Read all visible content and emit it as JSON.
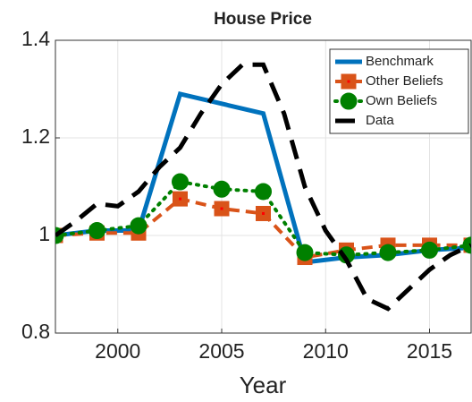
{
  "chart_data": {
    "type": "line",
    "title": "House Price",
    "xlabel": "Year",
    "xlim": [
      1997,
      2017
    ],
    "xticks": [
      2000,
      2005,
      2010,
      2015
    ],
    "ylim": [
      0.8,
      1.4
    ],
    "yticks": [
      0.8,
      1,
      1.2,
      1.4
    ],
    "grid": true,
    "legend": "upper right",
    "series": [
      {
        "name": "Benchmark",
        "color": "#0072bd",
        "style": "solid",
        "marker": "none",
        "x": [
          1997,
          1999,
          2001,
          2003,
          2005,
          2007,
          2009,
          2011,
          2013,
          2015,
          2017
        ],
        "values": [
          1.0,
          1.01,
          1.01,
          1.29,
          1.27,
          1.25,
          0.945,
          0.955,
          0.96,
          0.97,
          0.975
        ]
      },
      {
        "name": "Other Beliefs",
        "color": "#d95319",
        "style": "dashed",
        "marker": "square",
        "x": [
          1997,
          1999,
          2001,
          2003,
          2005,
          2007,
          2009,
          2011,
          2013,
          2015,
          2017
        ],
        "values": [
          1.0,
          1.005,
          1.005,
          1.075,
          1.055,
          1.045,
          0.955,
          0.97,
          0.98,
          0.98,
          0.98
        ]
      },
      {
        "name": "Own Beliefs",
        "color": "#008000",
        "style": "dotted",
        "marker": "circle",
        "x": [
          1997,
          1999,
          2001,
          2003,
          2005,
          2007,
          2009,
          2011,
          2013,
          2015,
          2017
        ],
        "values": [
          1.0,
          1.01,
          1.02,
          1.11,
          1.095,
          1.09,
          0.965,
          0.96,
          0.965,
          0.97,
          0.98
        ]
      },
      {
        "name": "Data",
        "color": "#000000",
        "style": "longdash",
        "marker": "none",
        "x": [
          1997,
          1998,
          1999,
          2000,
          2001,
          2002,
          2003,
          2004,
          2005,
          2006,
          2007,
          2008,
          2009,
          2010,
          2011,
          2012,
          2013,
          2014,
          2015,
          2016,
          2017
        ],
        "values": [
          1.0,
          1.03,
          1.065,
          1.06,
          1.09,
          1.14,
          1.18,
          1.25,
          1.31,
          1.35,
          1.35,
          1.25,
          1.1,
          1.01,
          0.95,
          0.87,
          0.85,
          0.89,
          0.93,
          0.96,
          0.98
        ]
      }
    ]
  }
}
